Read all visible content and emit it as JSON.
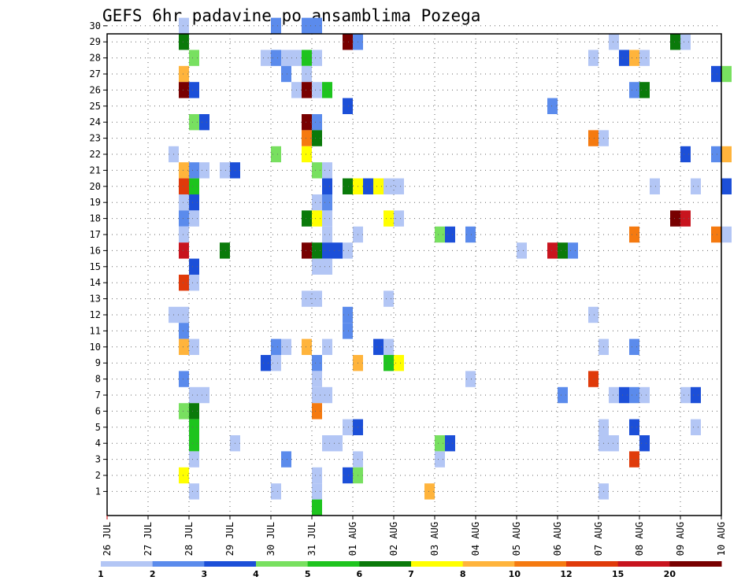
{
  "chart_data": {
    "type": "heatmap",
    "title": "GEFS 6hr padavine po ansamblima Pozega",
    "xlabel": "",
    "ylabel": "",
    "x_ticks": [
      "26 JUL",
      "27 JUL",
      "28 JUL",
      "29 JUL",
      "30 JUL",
      "31 JUL",
      "01 AUG",
      "02 AUG",
      "03 AUG",
      "04 AUG",
      "05 AUG",
      "06 AUG",
      "07 AUG",
      "08 AUG",
      "09 AUG",
      "10 AUG"
    ],
    "y_ticks": [
      "1",
      "2",
      "3",
      "4",
      "5",
      "6",
      "7",
      "8",
      "9",
      "10",
      "11",
      "12",
      "13",
      "14",
      "15",
      "16",
      "17",
      "18",
      "19",
      "20",
      "21",
      "22",
      "23",
      "24",
      "25",
      "26",
      "27",
      "28",
      "29",
      "30"
    ],
    "xlim": [
      0,
      60
    ],
    "ylim": [
      0,
      30
    ],
    "x_unit": "6-hour steps from 26 JUL 00Z",
    "grid": true,
    "legend_position": "bottom",
    "color_levels": [
      {
        "label": "1",
        "color": "#b3c6f5"
      },
      {
        "label": "2",
        "color": "#5b8bec"
      },
      {
        "label": "3",
        "color": "#1c4fd8"
      },
      {
        "label": "4",
        "color": "#78e060"
      },
      {
        "label": "5",
        "color": "#1ec41e"
      },
      {
        "label": "6",
        "color": "#0a7a0a"
      },
      {
        "label": "7",
        "color": "#ffff00"
      },
      {
        "label": "8",
        "color": "#ffb43c"
      },
      {
        "label": "10",
        "color": "#f57a10"
      },
      {
        "label": "12",
        "color": "#e03a0a"
      },
      {
        "label": "15",
        "color": "#c8141e"
      },
      {
        "label": "20",
        "color": "#780000"
      }
    ],
    "cells": [
      [
        7,
        30,
        0
      ],
      [
        16,
        30,
        1
      ],
      [
        19,
        30,
        1
      ],
      [
        20,
        30,
        1
      ],
      [
        7,
        29,
        5
      ],
      [
        23,
        29,
        11
      ],
      [
        24,
        29,
        1
      ],
      [
        49,
        29,
        0
      ],
      [
        55,
        29,
        5
      ],
      [
        56,
        29,
        0
      ],
      [
        8,
        28,
        3
      ],
      [
        15,
        28,
        0
      ],
      [
        16,
        28,
        1
      ],
      [
        17,
        28,
        0
      ],
      [
        18,
        28,
        0
      ],
      [
        19,
        28,
        4
      ],
      [
        20,
        28,
        0
      ],
      [
        47,
        28,
        0
      ],
      [
        50,
        28,
        2
      ],
      [
        51,
        28,
        7
      ],
      [
        52,
        28,
        0
      ],
      [
        7,
        27,
        7
      ],
      [
        17,
        27,
        1
      ],
      [
        19,
        27,
        0
      ],
      [
        59,
        27,
        2
      ],
      [
        60,
        27,
        3
      ],
      [
        7,
        26,
        11
      ],
      [
        8,
        26,
        2
      ],
      [
        18,
        26,
        0
      ],
      [
        19,
        26,
        11
      ],
      [
        20,
        26,
        0
      ],
      [
        21,
        26,
        4
      ],
      [
        51,
        26,
        1
      ],
      [
        52,
        26,
        5
      ],
      [
        23,
        25,
        2
      ],
      [
        43,
        25,
        1
      ],
      [
        8,
        24,
        3
      ],
      [
        9,
        24,
        2
      ],
      [
        19,
        24,
        11
      ],
      [
        20,
        24,
        1
      ],
      [
        19,
        23,
        8
      ],
      [
        20,
        23,
        5
      ],
      [
        47,
        23,
        8
      ],
      [
        48,
        23,
        0
      ],
      [
        6,
        22,
        0
      ],
      [
        16,
        22,
        3
      ],
      [
        19,
        22,
        6
      ],
      [
        56,
        22,
        2
      ],
      [
        59,
        22,
        1
      ],
      [
        60,
        22,
        7
      ],
      [
        7,
        21,
        7
      ],
      [
        8,
        21,
        1
      ],
      [
        9,
        21,
        0
      ],
      [
        11,
        21,
        0
      ],
      [
        12,
        21,
        2
      ],
      [
        20,
        21,
        3
      ],
      [
        21,
        21,
        0
      ],
      [
        7,
        20,
        9
      ],
      [
        8,
        20,
        4
      ],
      [
        21,
        20,
        2
      ],
      [
        23,
        20,
        5
      ],
      [
        24,
        20,
        6
      ],
      [
        25,
        20,
        2
      ],
      [
        26,
        20,
        6
      ],
      [
        27,
        20,
        0
      ],
      [
        28,
        20,
        0
      ],
      [
        53,
        20,
        0
      ],
      [
        57,
        20,
        0
      ],
      [
        60,
        20,
        2
      ],
      [
        7,
        19,
        0
      ],
      [
        8,
        19,
        2
      ],
      [
        20,
        19,
        0
      ],
      [
        21,
        19,
        1
      ],
      [
        7,
        18,
        1
      ],
      [
        8,
        18,
        0
      ],
      [
        19,
        18,
        5
      ],
      [
        20,
        18,
        6
      ],
      [
        21,
        18,
        0
      ],
      [
        27,
        18,
        6
      ],
      [
        28,
        18,
        0
      ],
      [
        55,
        18,
        11
      ],
      [
        56,
        18,
        10
      ],
      [
        7,
        17,
        0
      ],
      [
        21,
        17,
        0
      ],
      [
        24,
        17,
        0
      ],
      [
        32,
        17,
        3
      ],
      [
        33,
        17,
        2
      ],
      [
        35,
        17,
        1
      ],
      [
        51,
        17,
        8
      ],
      [
        59,
        17,
        8
      ],
      [
        60,
        17,
        0
      ],
      [
        7,
        16,
        10
      ],
      [
        11,
        16,
        5
      ],
      [
        19,
        16,
        11
      ],
      [
        20,
        16,
        5
      ],
      [
        21,
        16,
        2
      ],
      [
        22,
        16,
        2
      ],
      [
        23,
        16,
        0
      ],
      [
        40,
        16,
        0
      ],
      [
        43,
        16,
        10
      ],
      [
        44,
        16,
        5
      ],
      [
        45,
        16,
        1
      ],
      [
        8,
        15,
        2
      ],
      [
        20,
        15,
        0
      ],
      [
        21,
        15,
        0
      ],
      [
        7,
        14,
        9
      ],
      [
        8,
        14,
        0
      ],
      [
        19,
        13,
        0
      ],
      [
        20,
        13,
        0
      ],
      [
        27,
        13,
        0
      ],
      [
        6,
        12,
        0
      ],
      [
        7,
        12,
        0
      ],
      [
        23,
        12,
        1
      ],
      [
        47,
        12,
        0
      ],
      [
        7,
        11,
        1
      ],
      [
        23,
        11,
        1
      ],
      [
        7,
        10,
        7
      ],
      [
        8,
        10,
        0
      ],
      [
        16,
        10,
        1
      ],
      [
        17,
        10,
        0
      ],
      [
        19,
        10,
        7
      ],
      [
        21,
        10,
        0
      ],
      [
        26,
        10,
        2
      ],
      [
        27,
        10,
        0
      ],
      [
        48,
        10,
        0
      ],
      [
        51,
        10,
        1
      ],
      [
        15,
        9,
        2
      ],
      [
        16,
        9,
        0
      ],
      [
        20,
        9,
        1
      ],
      [
        24,
        9,
        7
      ],
      [
        27,
        9,
        4
      ],
      [
        28,
        9,
        6
      ],
      [
        7,
        8,
        1
      ],
      [
        20,
        8,
        0
      ],
      [
        35,
        8,
        0
      ],
      [
        47,
        8,
        9
      ],
      [
        8,
        7,
        0
      ],
      [
        9,
        7,
        0
      ],
      [
        20,
        7,
        0
      ],
      [
        21,
        7,
        0
      ],
      [
        44,
        7,
        1
      ],
      [
        49,
        7,
        0
      ],
      [
        50,
        7,
        2
      ],
      [
        51,
        7,
        1
      ],
      [
        52,
        7,
        0
      ],
      [
        56,
        7,
        0
      ],
      [
        57,
        7,
        2
      ],
      [
        7,
        6,
        3
      ],
      [
        8,
        6,
        5
      ],
      [
        20,
        6,
        8
      ],
      [
        8,
        5,
        4
      ],
      [
        23,
        5,
        0
      ],
      [
        24,
        5,
        2
      ],
      [
        48,
        5,
        0
      ],
      [
        51,
        5,
        2
      ],
      [
        57,
        5,
        0
      ],
      [
        8,
        4,
        4
      ],
      [
        12,
        4,
        0
      ],
      [
        21,
        4,
        0
      ],
      [
        22,
        4,
        0
      ],
      [
        32,
        4,
        3
      ],
      [
        33,
        4,
        2
      ],
      [
        48,
        4,
        0
      ],
      [
        49,
        4,
        0
      ],
      [
        52,
        4,
        2
      ],
      [
        8,
        3,
        0
      ],
      [
        17,
        3,
        1
      ],
      [
        24,
        3,
        0
      ],
      [
        32,
        3,
        0
      ],
      [
        51,
        3,
        9
      ],
      [
        7,
        2,
        6
      ],
      [
        20,
        2,
        0
      ],
      [
        23,
        2,
        2
      ],
      [
        24,
        2,
        3
      ],
      [
        8,
        1,
        0
      ],
      [
        16,
        1,
        0
      ],
      [
        20,
        1,
        0
      ],
      [
        31,
        1,
        7
      ],
      [
        48,
        1,
        0
      ],
      [
        20,
        0,
        4
      ]
    ]
  }
}
